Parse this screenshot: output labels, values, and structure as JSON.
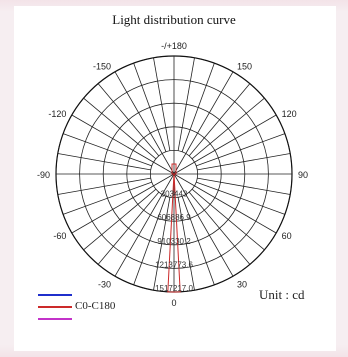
{
  "chart_data": {
    "type": "polar",
    "title": "Light distribution curve",
    "unit_label": "Unit : cd",
    "angle_labels": [
      {
        "angle": 180,
        "label": "-/+180"
      },
      {
        "angle": 150,
        "label": "150"
      },
      {
        "angle": 120,
        "label": "120"
      },
      {
        "angle": 90,
        "label": "90"
      },
      {
        "angle": 60,
        "label": "60"
      },
      {
        "angle": 30,
        "label": "30"
      },
      {
        "angle": 0,
        "label": "0"
      },
      {
        "angle": -30,
        "label": "-30"
      },
      {
        "angle": -60,
        "label": "-60"
      },
      {
        "angle": -90,
        "label": "-90"
      },
      {
        "angle": -120,
        "label": "-120"
      },
      {
        "angle": -150,
        "label": "-150"
      }
    ],
    "radial_labels": [
      "303443",
      "606886.9",
      "910330.2",
      "1213773.6",
      "1517217.0"
    ],
    "radial_max": 1517217.0,
    "series": [
      {
        "name": "C0-C180",
        "color": "#cc2a2a",
        "points": [
          [
            -3,
            1517217.0
          ],
          [
            0,
            1517217.0
          ],
          [
            3,
            1517217.0
          ],
          [
            6,
            12000
          ],
          [
            -6,
            12000
          ]
        ]
      }
    ],
    "legend": [
      {
        "label": "",
        "color": "#1f2fcc"
      },
      {
        "label": "C0-C180",
        "color": "#cc2a2a"
      },
      {
        "label": "",
        "color": "#c333c9"
      }
    ],
    "grid": true
  }
}
